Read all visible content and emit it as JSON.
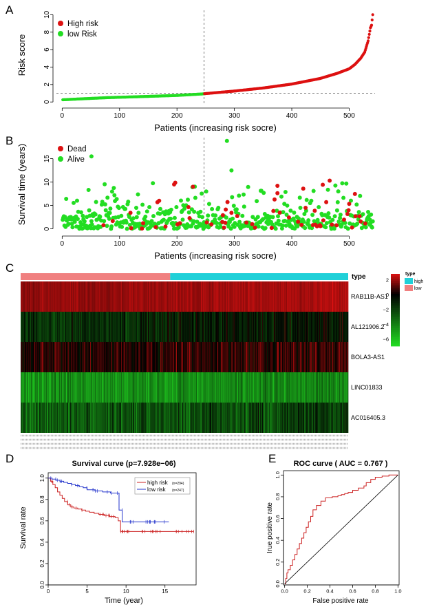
{
  "panels": {
    "A": {
      "letter": "A"
    },
    "B": {
      "letter": "B"
    },
    "C": {
      "letter": "C"
    },
    "D": {
      "letter": "D"
    },
    "E": {
      "letter": "E"
    }
  },
  "chart_data": [
    {
      "id": "A",
      "type": "scatter",
      "title": "",
      "xlabel": "Patients (increasing risk socre)",
      "ylabel": "Risk score",
      "xlim": [
        -10,
        545
      ],
      "ylim": [
        -0.3,
        10.5
      ],
      "xticks": [
        0,
        100,
        200,
        300,
        400,
        500
      ],
      "yticks": [
        0,
        2,
        4,
        6,
        8,
        10
      ],
      "cutoff_index": 247,
      "cutoff_value": 1.0,
      "legend": {
        "position": "top-left",
        "entries": [
          "High risk",
          "low Risk"
        ]
      },
      "series": [
        {
          "name": "low Risk",
          "color": "#22DD22",
          "curve_points": [
            [
              1,
              0.25
            ],
            [
              30,
              0.35
            ],
            [
              80,
              0.5
            ],
            [
              140,
              0.62
            ],
            [
              200,
              0.75
            ],
            [
              247,
              0.93
            ]
          ]
        },
        {
          "name": "High risk",
          "color": "#DD1111",
          "curve_points": [
            [
              248,
              0.95
            ],
            [
              300,
              1.25
            ],
            [
              350,
              1.6
            ],
            [
              400,
              2.05
            ],
            [
              450,
              2.7
            ],
            [
              480,
              3.3
            ],
            [
              500,
              3.8
            ],
            [
              510,
              4.3
            ],
            [
              520,
              5.0
            ],
            [
              527,
              5.7
            ],
            [
              533,
              7.0
            ],
            [
              537,
              8.5
            ],
            [
              539,
              8.8
            ],
            [
              541,
              10.0
            ]
          ]
        }
      ]
    },
    {
      "id": "B",
      "type": "scatter",
      "title": "",
      "xlabel": "Patients (increasing risk socre)",
      "ylabel": "Survival time (years)",
      "xlim": [
        -10,
        545
      ],
      "ylim": [
        -0.8,
        19.5
      ],
      "xticks": [
        0,
        100,
        200,
        300,
        400,
        500
      ],
      "yticks": [
        0,
        5,
        10,
        15
      ],
      "cutoff_index": 247,
      "legend": {
        "position": "top-left",
        "entries": [
          "Dead",
          "Alive"
        ]
      },
      "series": [
        {
          "name": "Dead",
          "color": "#DD1111",
          "count": 70
        },
        {
          "name": "Alive",
          "color": "#22DD22",
          "count": 471
        }
      ],
      "highlight_points": [
        [
          51,
          15.5,
          "Alive"
        ],
        [
          287,
          18.8,
          "Alive"
        ],
        [
          295,
          12.5,
          "Alive"
        ],
        [
          195,
          9.5,
          "Dead"
        ],
        [
          228,
          9.0,
          "Dead"
        ],
        [
          375,
          9.2,
          "Dead"
        ],
        [
          420,
          8.6,
          "Dead"
        ]
      ]
    },
    {
      "id": "C",
      "type": "heatmap",
      "title": "",
      "rows": [
        "RAB11B-AS1",
        "AL121906.2",
        "BOLA3-AS1",
        "LINC01833",
        "AC016405.3"
      ],
      "row_mean": [
        2.0,
        -1.0,
        0.5,
        -4.5,
        -2.5
      ],
      "row_spread": [
        0.4,
        1.3,
        1.2,
        1.4,
        1.8
      ],
      "group_label": "type",
      "groups": [
        {
          "name": "low",
          "color": "#F08080",
          "count": 247
        },
        {
          "name": "high",
          "color": "#20D0D8",
          "count": 294
        }
      ],
      "colorbar": {
        "ticks": [
          2,
          0,
          -2,
          -4,
          -6
        ],
        "range": [
          -7,
          2.8
        ],
        "low_color": "#22DD22",
        "mid_color": "#000000",
        "high_color": "#DD1111"
      },
      "legend": {
        "title": "type",
        "entries": [
          "high",
          "low"
        ],
        "colors": [
          "#20D0D8",
          "#F08080"
        ]
      }
    },
    {
      "id": "D",
      "type": "line",
      "title": "Survival curve (p=7.928e−06)",
      "xlabel": "Time (year)",
      "ylabel": "Survival rate",
      "xlim": [
        0,
        19
      ],
      "ylim": [
        0,
        1.05
      ],
      "xticks": [
        0,
        5,
        10,
        15
      ],
      "yticks": [
        0.0,
        0.2,
        0.4,
        0.6,
        0.8,
        1.0
      ],
      "legend": {
        "position": "top-right",
        "entries": [
          "high risk",
          "low risk"
        ],
        "counts": [
          "(n=294)",
          "(n=247)"
        ]
      },
      "series": [
        {
          "name": "high risk",
          "color": "#CC2222",
          "x": [
            0,
            0.3,
            0.6,
            0.9,
            1.2,
            1.5,
            1.8,
            2.1,
            2.5,
            2.9,
            3.3,
            3.8,
            4.3,
            4.8,
            5.3,
            5.9,
            6.5,
            7.2,
            7.9,
            8.6,
            9.0,
            9.3,
            10.0,
            12.0,
            15.0,
            18.7
          ],
          "y": [
            1.0,
            0.97,
            0.94,
            0.91,
            0.87,
            0.84,
            0.81,
            0.78,
            0.75,
            0.73,
            0.72,
            0.71,
            0.7,
            0.69,
            0.68,
            0.67,
            0.66,
            0.65,
            0.64,
            0.63,
            0.6,
            0.5,
            0.5,
            0.5,
            0.5,
            0.5
          ]
        },
        {
          "name": "low risk",
          "color": "#2233CC",
          "x": [
            0,
            0.5,
            1.0,
            1.5,
            2.0,
            2.5,
            3.0,
            3.5,
            4.0,
            4.5,
            5.0,
            6.0,
            7.0,
            8.0,
            8.9,
            9.1,
            9.5,
            10.0,
            12.0,
            15.5
          ],
          "y": [
            1.0,
            0.99,
            0.98,
            0.97,
            0.96,
            0.95,
            0.94,
            0.93,
            0.92,
            0.91,
            0.89,
            0.88,
            0.87,
            0.86,
            0.86,
            0.7,
            0.59,
            0.59,
            0.59,
            0.59
          ]
        }
      ]
    },
    {
      "id": "E",
      "type": "line",
      "title": "ROC curve ( AUC =  0.767 )",
      "xlabel": "False positive rate",
      "ylabel": "Irue positive rate",
      "xlim": [
        -0.01,
        1.01
      ],
      "ylim": [
        -0.01,
        1.04
      ],
      "xticks": [
        0.0,
        0.2,
        0.4,
        0.6,
        0.8,
        1.0
      ],
      "yticks": [
        0.0,
        0.2,
        0.4,
        0.6,
        0.8,
        1.0
      ],
      "series": [
        {
          "name": "",
          "color": "#CC2222",
          "x": [
            0.0,
            0.01,
            0.02,
            0.03,
            0.05,
            0.07,
            0.09,
            0.11,
            0.13,
            0.15,
            0.17,
            0.19,
            0.21,
            0.23,
            0.25,
            0.28,
            0.32,
            0.36,
            0.42,
            0.47,
            0.5,
            0.53,
            0.56,
            0.6,
            0.65,
            0.7,
            0.72,
            0.76,
            0.8,
            0.86,
            0.92,
            0.97,
            1.0
          ],
          "y": [
            0.0,
            0.05,
            0.1,
            0.13,
            0.17,
            0.22,
            0.27,
            0.32,
            0.37,
            0.42,
            0.47,
            0.52,
            0.57,
            0.62,
            0.68,
            0.72,
            0.76,
            0.79,
            0.8,
            0.81,
            0.82,
            0.83,
            0.84,
            0.86,
            0.88,
            0.9,
            0.93,
            0.96,
            0.98,
            0.99,
            1.0,
            1.0,
            1.0
          ]
        },
        {
          "name": "",
          "color": "#000000",
          "x": [
            0,
            1
          ],
          "y": [
            0,
            1
          ]
        }
      ]
    }
  ]
}
